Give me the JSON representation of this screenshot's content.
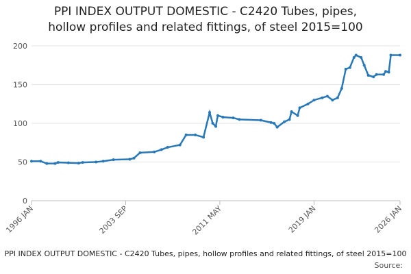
{
  "chart_data": {
    "type": "line",
    "title": [
      "PPI INDEX OUTPUT DOMESTIC - C2420 Tubes, pipes,",
      "hollow profiles and related fittings, of steel 2015=100"
    ],
    "caption": "PPI INDEX OUTPUT DOMESTIC - C2420 Tubes, pipes, hollow profiles and related fittings, of steel 2015=100",
    "source": "Source:",
    "x": [
      "1996 JAN",
      "1996 OCT",
      "1997 APR",
      "1997 DEC",
      "1998 MAR",
      "1999 JAN",
      "1999 NOV",
      "2000 MAR",
      "2001 APR",
      "2001 NOV",
      "2002 SEP",
      "2004 JAN",
      "2004 MAY",
      "2004 NOV",
      "2006 JAN",
      "2006 AUG",
      "2007 FEB",
      "2008 FEB",
      "2008 AUG",
      "2009 MAY",
      "2010 JAN",
      "2010 JUL",
      "2010 OCT",
      "2011 JAN",
      "2011 MAR",
      "2011 AUG",
      "2012 JUN",
      "2012 DEC",
      "2014 SEP",
      "2015 JUL",
      "2015 OCT",
      "2016 JAN",
      "2016 AUG",
      "2017 JAN",
      "2017 MAR",
      "2017 SEP",
      "2017 NOV",
      "2018 JUL",
      "2019 JAN",
      "2019 SEP",
      "2020 FEB",
      "2020 JUL",
      "2020 DEC",
      "2021 APR",
      "2021 AUG",
      "2021 DEC",
      "2022 APR",
      "2022 JUN",
      "2022 NOV",
      "2023 FEB",
      "2023 JUN",
      "2023 NOV",
      "2024 FEB",
      "2024 SEP",
      "2024 NOV",
      "2025 FEB",
      "2025 APR",
      "2026 JAN"
    ],
    "series": [
      {
        "color": "#2878b8",
        "values": [
          51,
          51,
          48,
          48,
          49.5,
          49,
          48.5,
          49.5,
          50,
          51,
          53,
          53.5,
          55,
          62,
          63,
          66,
          69,
          72,
          85,
          85,
          82,
          114,
          100,
          96,
          110,
          108,
          107,
          105,
          104,
          101,
          100,
          95,
          102,
          105,
          115,
          110,
          120,
          125,
          130,
          133,
          135,
          130,
          133,
          145,
          170,
          172,
          185,
          188,
          185,
          175,
          162,
          160,
          163,
          163,
          167,
          166,
          188,
          188
        ]
      }
    ],
    "xlim": [
      "1996 JAN",
      "2026 JAN"
    ],
    "xticks": [
      "1996 JAN",
      "2003 SEP",
      "2011 MAY",
      "2019 JAN",
      "2026 JAN"
    ],
    "ylim": [
      0,
      200
    ],
    "yticks": [
      0,
      50,
      100,
      150,
      200
    ],
    "grid": true
  }
}
